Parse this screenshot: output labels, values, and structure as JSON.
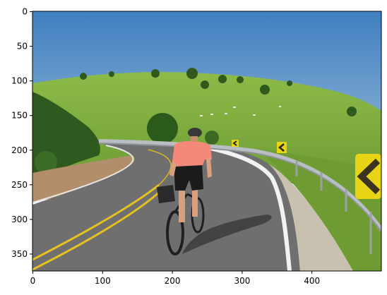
{
  "axes": {
    "x_ticks": [
      0,
      100,
      200,
      300,
      400
    ],
    "y_ticks": [
      0,
      50,
      100,
      150,
      200,
      250,
      300,
      350
    ],
    "xlim": [
      -0.5,
      499.5
    ],
    "ylim": [
      374.5,
      -0.5
    ]
  },
  "scene": {
    "sky_color": "#4f8cc4",
    "hill_color": "#7fae3e",
    "road_color": "#6f6f6f",
    "center_line_color": "#e5c21f",
    "edge_line_color": "#f2f2f2",
    "jersey_color": "#f4897a",
    "shorts_color": "#1b1b1b",
    "sign_color": "#e8d414",
    "guardrail_color": "#b9bec2"
  }
}
